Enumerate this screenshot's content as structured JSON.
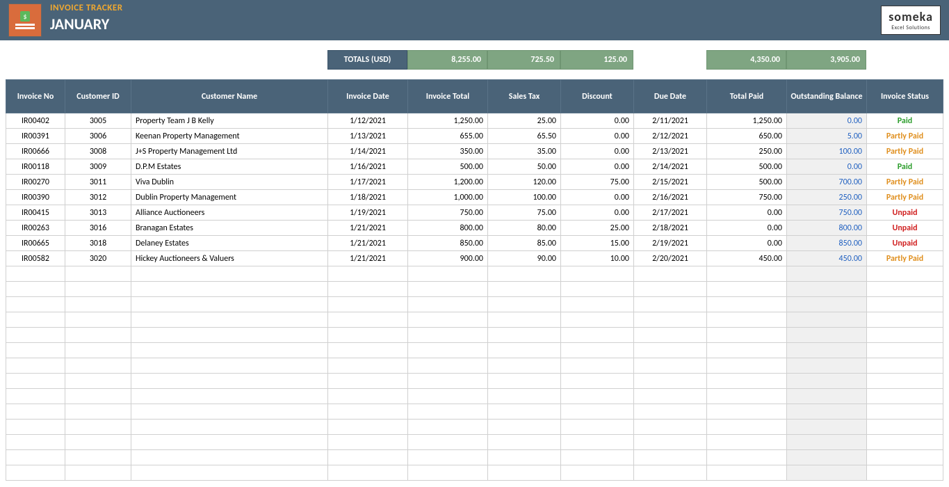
{
  "header": {
    "app_title": "INVOICE TRACKER",
    "period": "JANUARY",
    "logo_main": "someka",
    "logo_sub": "Excel Solutions"
  },
  "columns": {
    "widths": [
      85,
      95,
      283,
      115,
      115,
      105,
      105,
      105,
      115,
      115,
      110
    ],
    "headers": [
      "Invoice No",
      "Customer ID",
      "Customer Name",
      "Invoice Date",
      "Invoice Total",
      "Sales Tax",
      "Discount",
      "Due Date",
      "Total Paid",
      "Outstanding Balance",
      "Invoice Status"
    ]
  },
  "totals": {
    "label": "TOTALS (USD)",
    "invoice_total": "8,255.00",
    "sales_tax": "725.50",
    "discount": "125.00",
    "total_paid": "4,350.00",
    "outstanding": "3,905.00"
  },
  "rows": [
    {
      "invoice_no": "IR00402",
      "customer_id": "3005",
      "customer_name": "Property Team J B Kelly",
      "invoice_date": "1/12/2021",
      "invoice_total": "1,250.00",
      "sales_tax": "25.00",
      "discount": "0.00",
      "due_date": "2/11/2021",
      "total_paid": "1,250.00",
      "outstanding": "0.00",
      "status": "Paid"
    },
    {
      "invoice_no": "IR00391",
      "customer_id": "3006",
      "customer_name": "Keenan Property Management",
      "invoice_date": "1/13/2021",
      "invoice_total": "655.00",
      "sales_tax": "65.50",
      "discount": "0.00",
      "due_date": "2/12/2021",
      "total_paid": "650.00",
      "outstanding": "5.00",
      "status": "Partly Paid"
    },
    {
      "invoice_no": "IR00666",
      "customer_id": "3008",
      "customer_name": "J+S Property Management Ltd",
      "invoice_date": "1/14/2021",
      "invoice_total": "350.00",
      "sales_tax": "35.00",
      "discount": "0.00",
      "due_date": "2/13/2021",
      "total_paid": "250.00",
      "outstanding": "100.00",
      "status": "Partly Paid"
    },
    {
      "invoice_no": "IR00118",
      "customer_id": "3009",
      "customer_name": "D.P.M Estates",
      "invoice_date": "1/16/2021",
      "invoice_total": "500.00",
      "sales_tax": "50.00",
      "discount": "0.00",
      "due_date": "2/14/2021",
      "total_paid": "500.00",
      "outstanding": "0.00",
      "status": "Paid"
    },
    {
      "invoice_no": "IR00270",
      "customer_id": "3011",
      "customer_name": "Viva Dublin",
      "invoice_date": "1/17/2021",
      "invoice_total": "1,200.00",
      "sales_tax": "120.00",
      "discount": "75.00",
      "due_date": "2/15/2021",
      "total_paid": "500.00",
      "outstanding": "700.00",
      "status": "Partly Paid"
    },
    {
      "invoice_no": "IR00390",
      "customer_id": "3012",
      "customer_name": "Dublin Property Management",
      "invoice_date": "1/18/2021",
      "invoice_total": "1,000.00",
      "sales_tax": "100.00",
      "discount": "0.00",
      "due_date": "2/16/2021",
      "total_paid": "750.00",
      "outstanding": "250.00",
      "status": "Partly Paid"
    },
    {
      "invoice_no": "IR00415",
      "customer_id": "3013",
      "customer_name": "Alliance Auctioneers",
      "invoice_date": "1/19/2021",
      "invoice_total": "750.00",
      "sales_tax": "75.00",
      "discount": "0.00",
      "due_date": "2/17/2021",
      "total_paid": "0.00",
      "outstanding": "750.00",
      "status": "Unpaid"
    },
    {
      "invoice_no": "IR00263",
      "customer_id": "3016",
      "customer_name": "Branagan Estates",
      "invoice_date": "1/21/2021",
      "invoice_total": "800.00",
      "sales_tax": "80.00",
      "discount": "25.00",
      "due_date": "2/18/2021",
      "total_paid": "0.00",
      "outstanding": "800.00",
      "status": "Unpaid"
    },
    {
      "invoice_no": "IR00665",
      "customer_id": "3018",
      "customer_name": "Delaney Estates",
      "invoice_date": "1/21/2021",
      "invoice_total": "850.00",
      "sales_tax": "85.00",
      "discount": "15.00",
      "due_date": "2/19/2021",
      "total_paid": "0.00",
      "outstanding": "850.00",
      "status": "Unpaid"
    },
    {
      "invoice_no": "IR00582",
      "customer_id": "3020",
      "customer_name": "Hickey Auctioneers & Valuers",
      "invoice_date": "1/21/2021",
      "invoice_total": "900.00",
      "sales_tax": "90.00",
      "discount": "10.00",
      "due_date": "2/20/2021",
      "total_paid": "450.00",
      "outstanding": "450.00",
      "status": "Partly Paid"
    }
  ],
  "empty_rows": 14,
  "status_colors": {
    "Paid": "status-paid",
    "Partly Paid": "status-partly",
    "Unpaid": "status-unpaid"
  }
}
